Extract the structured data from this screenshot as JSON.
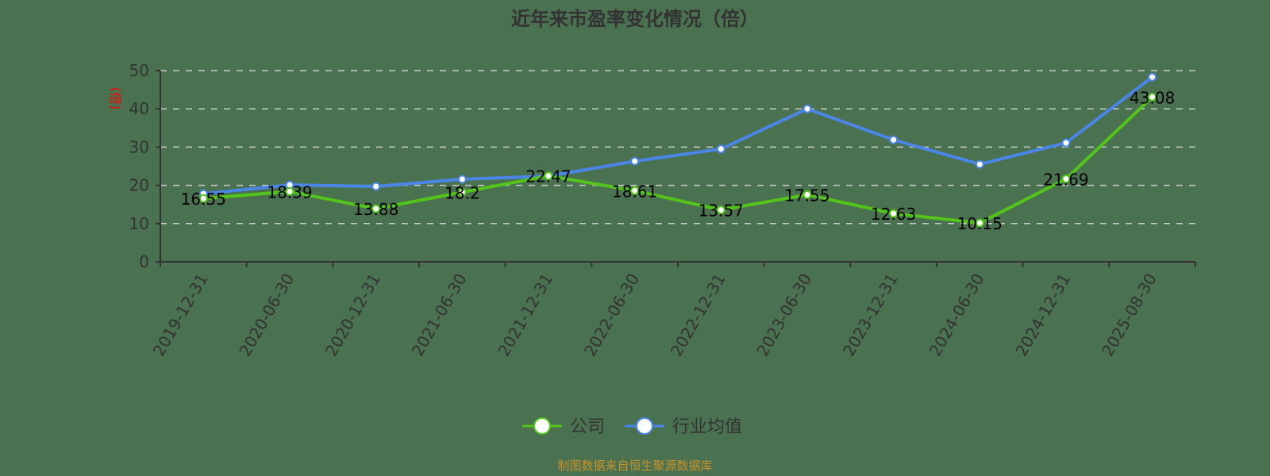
{
  "chart_data": {
    "type": "line",
    "title": "近年来市盈率变化情况（倍）",
    "xlabel": "",
    "ylabel": "(倍)",
    "ylim": [
      0,
      50
    ],
    "yticks": [
      0,
      10,
      20,
      30,
      40,
      50
    ],
    "grid": true,
    "legend_position": "bottom",
    "categories": [
      "2019-12-31",
      "2020-06-30",
      "2020-12-31",
      "2021-06-30",
      "2021-12-31",
      "2022-06-30",
      "2022-12-31",
      "2023-06-30",
      "2023-12-31",
      "2024-06-30",
      "2024-12-31",
      "2025-08-30"
    ],
    "series": [
      {
        "name": "公司",
        "color": "#52c41a",
        "values": [
          16.55,
          18.39,
          13.88,
          18.2,
          22.47,
          18.61,
          13.57,
          17.55,
          12.63,
          10.15,
          21.69,
          43.08
        ],
        "labels": [
          "16.55",
          "18.39",
          "13.88",
          "18.2",
          "22.47",
          "18.61",
          "13.57",
          "17.55",
          "12.63",
          "10.15",
          "21.69",
          "43.08"
        ]
      },
      {
        "name": "行业均值",
        "color": "#4a86e8",
        "values": [
          17.8,
          20.1,
          19.7,
          21.6,
          22.4,
          26.3,
          29.5,
          40.0,
          31.9,
          25.5,
          31.1,
          48.3
        ]
      }
    ],
    "source_note": "制图数据来自恒生聚源数据库"
  },
  "colors": {
    "background": "#4a7150",
    "company": "#52c41a",
    "industry": "#4a86e8",
    "axis": "#333333",
    "grid": "#cccccc",
    "ylabel": "#ff0000",
    "source": "#c8922a"
  }
}
